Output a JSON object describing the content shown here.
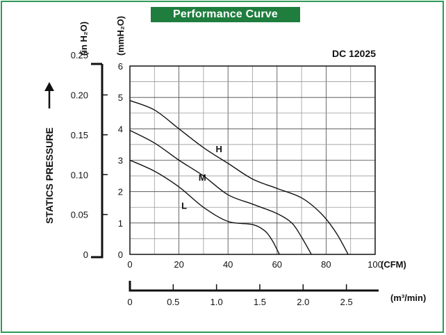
{
  "header": {
    "title": "Performance Curve"
  },
  "chart_data": {
    "type": "line",
    "model_label": "DC 12025",
    "xlabel_cfm": "(CFM)",
    "xlabel_m3": "(m³/min)",
    "ylabel_inh2o": "(in H₂O)",
    "ylabel_mmh2o": "(mmH₂O)",
    "yaxis_title": "STATICS PRESSURE",
    "xlim": [
      0,
      100
    ],
    "ylim": [
      0,
      6
    ],
    "x_ticks": [
      "0",
      "20",
      "40",
      "60",
      "80",
      "100"
    ],
    "y_ticks_mm": [
      "0",
      "1",
      "2",
      "3",
      "4",
      "5",
      "6"
    ],
    "y_ticks_in": [
      "0",
      "0.05",
      "0.10",
      "0.15",
      "0.20",
      "0.25"
    ],
    "m3_ticks": [
      "0",
      "0.5",
      "1.0",
      "1.5",
      "2.0",
      "2.5"
    ],
    "grid": true,
    "series": [
      {
        "name": "H",
        "points": [
          [
            0,
            4.9
          ],
          [
            10,
            4.6
          ],
          [
            20,
            4.0
          ],
          [
            30,
            3.4
          ],
          [
            40,
            2.9
          ],
          [
            50,
            2.4
          ],
          [
            60,
            2.1
          ],
          [
            70,
            1.8
          ],
          [
            78,
            1.3
          ],
          [
            84,
            0.7
          ],
          [
            89,
            0
          ]
        ]
      },
      {
        "name": "M",
        "points": [
          [
            0,
            3.95
          ],
          [
            10,
            3.55
          ],
          [
            20,
            3.0
          ],
          [
            30,
            2.5
          ],
          [
            40,
            1.9
          ],
          [
            50,
            1.6
          ],
          [
            60,
            1.3
          ],
          [
            66,
            1.0
          ],
          [
            70,
            0.55
          ],
          [
            74,
            0
          ]
        ]
      },
      {
        "name": "L",
        "points": [
          [
            0,
            3.0
          ],
          [
            10,
            2.65
          ],
          [
            20,
            2.15
          ],
          [
            30,
            1.5
          ],
          [
            40,
            1.05
          ],
          [
            50,
            0.95
          ],
          [
            55,
            0.75
          ],
          [
            58,
            0.45
          ],
          [
            60,
            0.15
          ],
          [
            61,
            0
          ]
        ]
      }
    ]
  }
}
